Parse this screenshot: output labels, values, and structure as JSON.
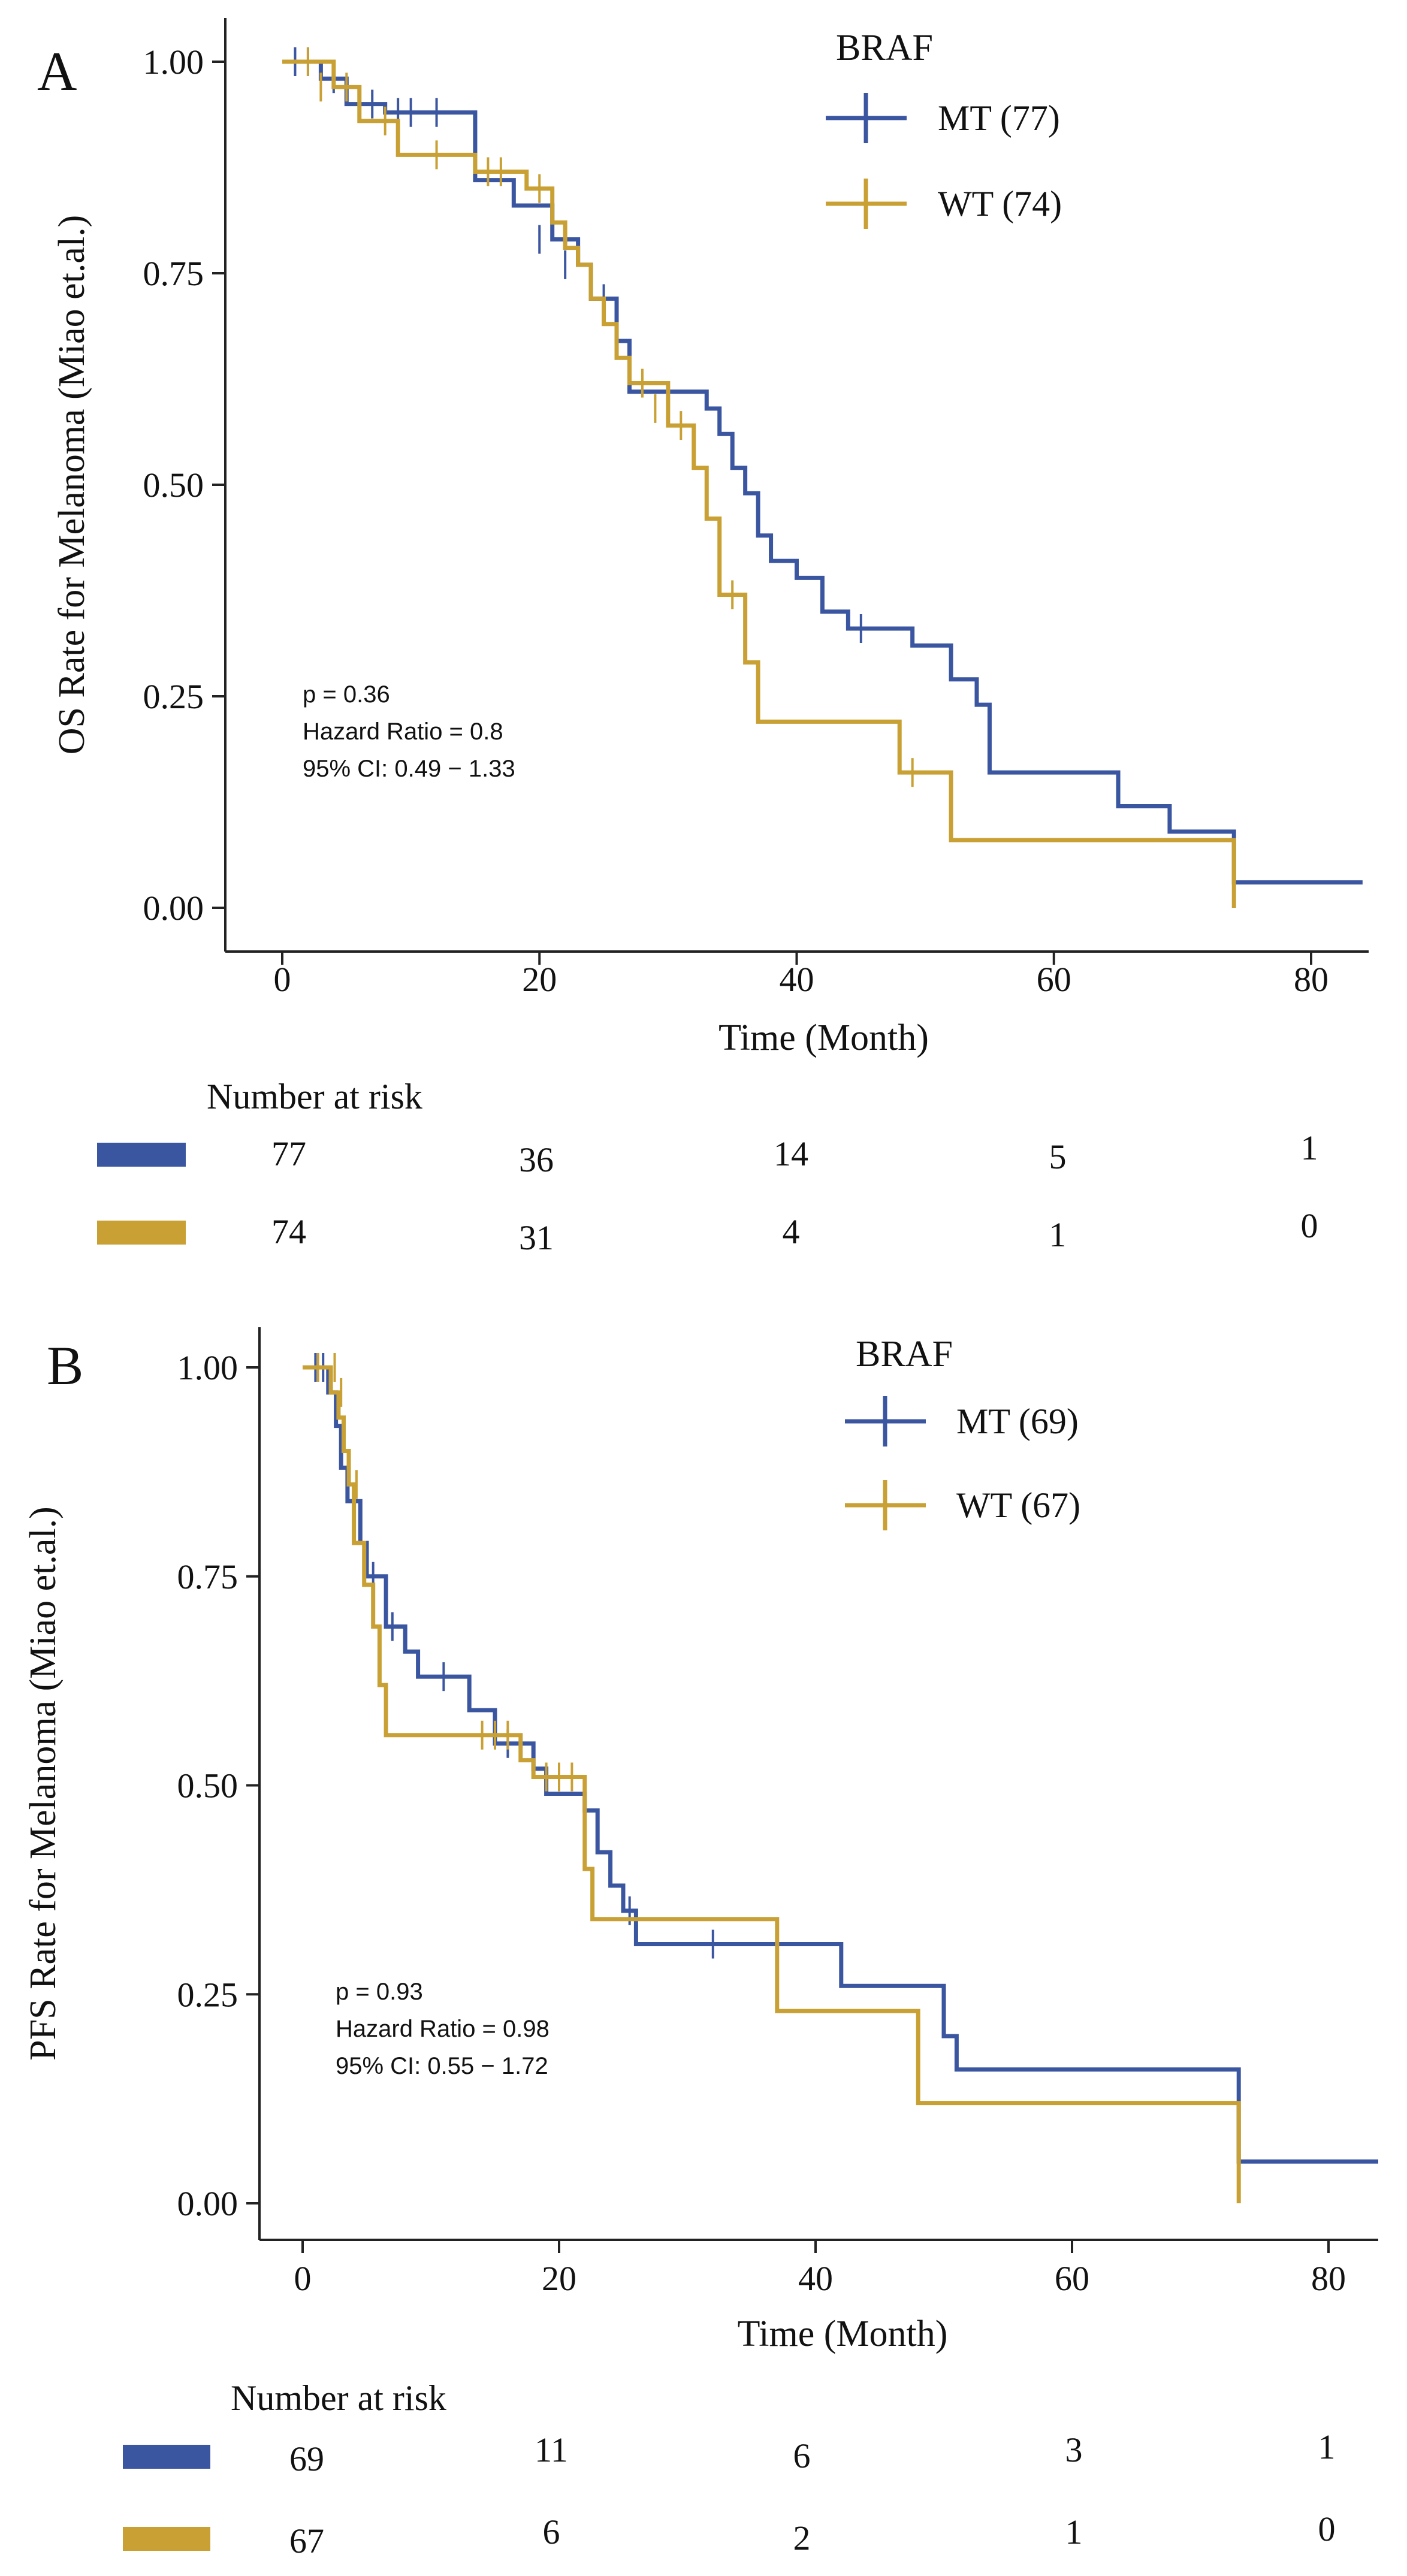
{
  "chart_data": [
    {
      "panel_label": "A",
      "type": "line",
      "subtype": "kaplan-meier",
      "ylabel": "OS Rate for Melanoma (Miao et.al.)",
      "xlabel": "Time (Month)",
      "xlim": [
        0,
        84
      ],
      "ylim": [
        0,
        1
      ],
      "x_ticks": [
        "0",
        "20",
        "40",
        "60",
        "80"
      ],
      "y_ticks": [
        "0.00",
        "0.25",
        "0.50",
        "0.75",
        "1.00"
      ],
      "legend_title": "BRAF",
      "legend_position": "top-right",
      "series": [
        {
          "name": "MT (77)",
          "color": "#3b56a0",
          "steps": [
            [
              0,
              1
            ],
            [
              3,
              0.98
            ],
            [
              5,
              0.95
            ],
            [
              8,
              0.94
            ],
            [
              15,
              0.86
            ],
            [
              18,
              0.83
            ],
            [
              21,
              0.79
            ],
            [
              23,
              0.76
            ],
            [
              24,
              0.72
            ],
            [
              26,
              0.67
            ],
            [
              27,
              0.61
            ],
            [
              33,
              0.59
            ],
            [
              34,
              0.56
            ],
            [
              35,
              0.52
            ],
            [
              36,
              0.49
            ],
            [
              37,
              0.44
            ],
            [
              38,
              0.41
            ],
            [
              40,
              0.39
            ],
            [
              42,
              0.35
            ],
            [
              44,
              0.33
            ],
            [
              49,
              0.31
            ],
            [
              52,
              0.27
            ],
            [
              54,
              0.24
            ],
            [
              55,
              0.16
            ],
            [
              65,
              0.12
            ],
            [
              69,
              0.09
            ],
            [
              74,
              0.03
            ],
            [
              84,
              0.03
            ]
          ],
          "censors": [
            [
              1,
              1
            ],
            [
              2,
              1
            ],
            [
              4,
              0.98
            ],
            [
              6,
              0.95
            ],
            [
              7,
              0.95
            ],
            [
              9,
              0.94
            ],
            [
              10,
              0.94
            ],
            [
              12,
              0.94
            ],
            [
              20,
              0.79
            ],
            [
              22,
              0.76
            ],
            [
              25,
              0.72
            ],
            [
              45,
              0.33
            ],
            [
              74,
              0.06
            ]
          ]
        },
        {
          "name": "WT (74)",
          "color": "#c8a033",
          "steps": [
            [
              0,
              1
            ],
            [
              4,
              0.97
            ],
            [
              6,
              0.93
            ],
            [
              9,
              0.89
            ],
            [
              15,
              0.87
            ],
            [
              19,
              0.85
            ],
            [
              21,
              0.81
            ],
            [
              22,
              0.78
            ],
            [
              23,
              0.76
            ],
            [
              24,
              0.72
            ],
            [
              25,
              0.69
            ],
            [
              26,
              0.65
            ],
            [
              27,
              0.62
            ],
            [
              30,
              0.57
            ],
            [
              32,
              0.52
            ],
            [
              33,
              0.46
            ],
            [
              34,
              0.37
            ],
            [
              36,
              0.29
            ],
            [
              37,
              0.22
            ],
            [
              48,
              0.16
            ],
            [
              52,
              0.08
            ],
            [
              74,
              0
            ]
          ],
          "censors": [
            [
              2,
              1
            ],
            [
              3,
              0.97
            ],
            [
              5,
              0.97
            ],
            [
              8,
              0.93
            ],
            [
              12,
              0.89
            ],
            [
              16,
              0.87
            ],
            [
              17,
              0.87
            ],
            [
              20,
              0.85
            ],
            [
              28,
              0.62
            ],
            [
              29,
              0.59
            ],
            [
              31,
              0.57
            ],
            [
              35,
              0.37
            ],
            [
              49,
              0.16
            ]
          ]
        }
      ],
      "annotation": {
        "p": "p = 0.36",
        "hr": "Hazard Ratio = 0.8",
        "ci": "95% CI: 0.49 − 1.33"
      },
      "risk_table": {
        "title": "Number at risk",
        "rows": [
          {
            "color": "#3b56a0",
            "values": [
              "77",
              "36",
              "14",
              "5",
              "1"
            ]
          },
          {
            "color": "#c8a033",
            "values": [
              "74",
              "31",
              "4",
              "1",
              "0"
            ]
          }
        ]
      }
    },
    {
      "panel_label": "B",
      "type": "line",
      "subtype": "kaplan-meier",
      "ylabel": "PFS Rate for Melanoma (Miao et.al.)",
      "xlabel": "Time (Month)",
      "xlim": [
        0,
        84
      ],
      "ylim": [
        0,
        1
      ],
      "x_ticks": [
        "0",
        "20",
        "40",
        "60",
        "80"
      ],
      "y_ticks": [
        "0.00",
        "0.25",
        "0.50",
        "0.75",
        "1.00"
      ],
      "legend_title": "BRAF",
      "legend_position": "top-right",
      "series": [
        {
          "name": "MT (69)",
          "color": "#3b56a0",
          "steps": [
            [
              0,
              1
            ],
            [
              2,
              0.97
            ],
            [
              2.6,
              0.93
            ],
            [
              3,
              0.88
            ],
            [
              3.5,
              0.84
            ],
            [
              4.5,
              0.79
            ],
            [
              5,
              0.75
            ],
            [
              6.5,
              0.69
            ],
            [
              8,
              0.66
            ],
            [
              9,
              0.63
            ],
            [
              13,
              0.59
            ],
            [
              15,
              0.55
            ],
            [
              18,
              0.52
            ],
            [
              19,
              0.49
            ],
            [
              22,
              0.47
            ],
            [
              23,
              0.42
            ],
            [
              24,
              0.38
            ],
            [
              25,
              0.35
            ],
            [
              26,
              0.31
            ],
            [
              42,
              0.26
            ],
            [
              50,
              0.2
            ],
            [
              51,
              0.16
            ],
            [
              73,
              0.05
            ],
            [
              84,
              0.05
            ]
          ],
          "censors": [
            [
              1,
              1
            ],
            [
              1.6,
              1
            ],
            [
              4,
              0.84
            ],
            [
              5.5,
              0.75
            ],
            [
              7,
              0.69
            ],
            [
              11,
              0.63
            ],
            [
              16,
              0.55
            ],
            [
              25.5,
              0.35
            ],
            [
              32,
              0.31
            ]
          ]
        },
        {
          "name": "WT (67)",
          "color": "#c8a033",
          "steps": [
            [
              0,
              1
            ],
            [
              2.2,
              0.97
            ],
            [
              2.8,
              0.94
            ],
            [
              3.2,
              0.9
            ],
            [
              3.6,
              0.86
            ],
            [
              4,
              0.79
            ],
            [
              4.8,
              0.74
            ],
            [
              5.5,
              0.69
            ],
            [
              6,
              0.62
            ],
            [
              6.5,
              0.56
            ],
            [
              17,
              0.53
            ],
            [
              18,
              0.51
            ],
            [
              22,
              0.4
            ],
            [
              22.6,
              0.34
            ],
            [
              37,
              0.23
            ],
            [
              48,
              0.12
            ],
            [
              73,
              0
            ]
          ],
          "censors": [
            [
              1.2,
              1
            ],
            [
              2.5,
              1
            ],
            [
              3,
              0.97
            ],
            [
              4.2,
              0.86
            ],
            [
              14,
              0.56
            ],
            [
              15,
              0.56
            ],
            [
              16,
              0.56
            ],
            [
              19,
              0.51
            ],
            [
              20,
              0.51
            ],
            [
              21,
              0.51
            ]
          ]
        }
      ],
      "annotation": {
        "p": "p = 0.93",
        "hr": "Hazard Ratio = 0.98",
        "ci": "95% CI: 0.55 − 1.72"
      },
      "risk_table": {
        "title": "Number at risk",
        "rows": [
          {
            "color": "#3b56a0",
            "values": [
              "69",
              "11",
              "6",
              "3",
              "1"
            ]
          },
          {
            "color": "#c8a033",
            "values": [
              "67",
              "6",
              "2",
              "1",
              "0"
            ]
          }
        ]
      }
    }
  ]
}
